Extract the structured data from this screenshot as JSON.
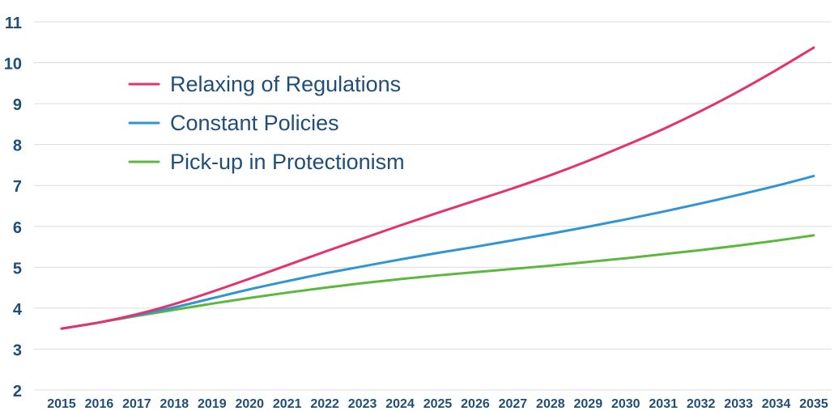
{
  "chart_data": {
    "type": "line",
    "title": "",
    "xlabel": "",
    "ylabel": "",
    "x": [
      2015,
      2016,
      2017,
      2018,
      2019,
      2020,
      2021,
      2022,
      2023,
      2024,
      2025,
      2026,
      2027,
      2028,
      2029,
      2030,
      2031,
      2032,
      2033,
      2034,
      2035
    ],
    "x_tick_labels": [
      "2015",
      "2016",
      "2017",
      "2018",
      "2019",
      "2020",
      "2021",
      "2022",
      "2023",
      "2024",
      "2025",
      "2026",
      "2027",
      "2028",
      "2029",
      "2030",
      "2031",
      "2032",
      "2033",
      "2034",
      "2035"
    ],
    "ylim": [
      2,
      11
    ],
    "y_ticks": [
      2,
      3,
      4,
      5,
      6,
      7,
      8,
      9,
      10,
      11
    ],
    "y_tick_labels": [
      "2",
      "3",
      "4",
      "5",
      "6",
      "7",
      "8",
      "9",
      "10",
      "11"
    ],
    "grid": "horizontal",
    "legend_position": "top-left",
    "series": [
      {
        "name": "Relaxing of Regulations",
        "color": "#e6306f",
        "values": [
          3.5,
          3.65,
          3.85,
          4.1,
          4.4,
          4.72,
          5.05,
          5.38,
          5.7,
          6.02,
          6.33,
          6.63,
          6.93,
          7.25,
          7.6,
          7.98,
          8.38,
          8.82,
          9.3,
          9.82,
          10.37
        ]
      },
      {
        "name": "Constant Policies",
        "color": "#2f95d3",
        "values": [
          3.5,
          3.65,
          3.83,
          4.02,
          4.24,
          4.46,
          4.66,
          4.85,
          5.02,
          5.19,
          5.35,
          5.5,
          5.66,
          5.82,
          5.99,
          6.17,
          6.36,
          6.56,
          6.77,
          6.99,
          7.23
        ]
      },
      {
        "name": "Pick-up in Protectionism",
        "color": "#5cb83c",
        "values": [
          3.5,
          3.65,
          3.81,
          3.96,
          4.11,
          4.25,
          4.38,
          4.5,
          4.61,
          4.71,
          4.8,
          4.88,
          4.96,
          5.04,
          5.13,
          5.22,
          5.32,
          5.42,
          5.53,
          5.65,
          5.78
        ]
      }
    ]
  }
}
